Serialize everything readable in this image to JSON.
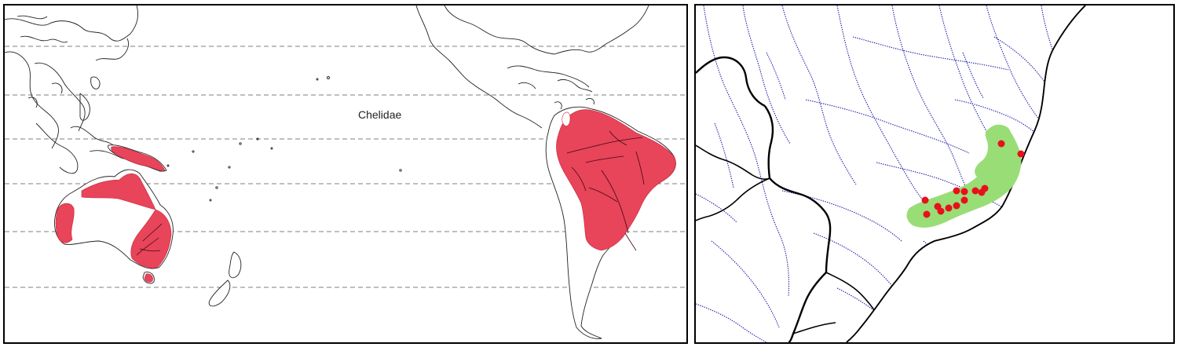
{
  "world_map": {
    "label": "Chelidae",
    "colors": {
      "range": "#e8445a",
      "coastline": "#222222",
      "gridline": "#555555"
    }
  },
  "regional_map": {
    "colors": {
      "distribution": "#99dd77",
      "records": "#e8101a",
      "rivers": "#1a1aa8",
      "borders": "#000000"
    },
    "record_count": 14
  }
}
